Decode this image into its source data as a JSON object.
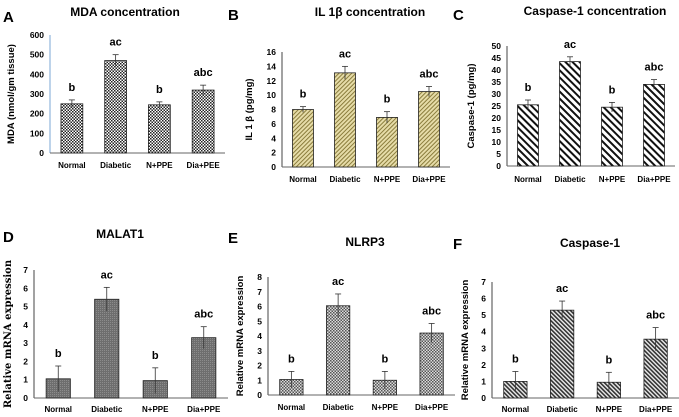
{
  "chart_data": [
    {
      "panel": "A",
      "type": "bar",
      "title": "MDA concentration",
      "ylabel": "MDA (nmol/gm tissue)",
      "categories": [
        "Normal",
        "Diabetic",
        "N+PPE",
        "Dia+PEE"
      ],
      "values": [
        250,
        470,
        245,
        320
      ],
      "errors": [
        20,
        30,
        15,
        25
      ],
      "significance": [
        "b",
        "ac",
        "b",
        "abc"
      ],
      "ylim": [
        0,
        600
      ],
      "yticks": [
        0,
        100,
        200,
        300,
        400,
        500,
        600
      ],
      "fill": "#555555",
      "pattern": "checker"
    },
    {
      "panel": "B",
      "type": "bar",
      "title": "IL 1β concentration",
      "ylabel": "IL 1 β (pg/mg)",
      "categories": [
        "Normal",
        "Diabetic",
        "N+PPE",
        "Dia+PPE"
      ],
      "values": [
        8,
        13.1,
        6.9,
        10.5
      ],
      "errors": [
        0.4,
        0.9,
        0.8,
        0.7
      ],
      "significance": [
        "b",
        "ac",
        "b",
        "abc"
      ],
      "ylim": [
        0,
        16
      ],
      "yticks": [
        0,
        2,
        4,
        6,
        8,
        10,
        12,
        14,
        16
      ],
      "fill": "#d9cf98",
      "pattern": "hatch-fine"
    },
    {
      "panel": "C",
      "type": "bar",
      "title": "Caspase-1 concentration",
      "ylabel": "Caspase-1 (pg/mg)",
      "categories": [
        "Normal",
        "Diabetic",
        "N+PPE",
        "Dia+PPE"
      ],
      "values": [
        25.5,
        43.5,
        24.5,
        34
      ],
      "errors": [
        2,
        2,
        2,
        2
      ],
      "significance": [
        "b",
        "ac",
        "b",
        "abc"
      ],
      "ylim": [
        0,
        50
      ],
      "yticks": [
        0,
        5,
        10,
        15,
        20,
        25,
        30,
        35,
        40,
        45,
        50
      ],
      "fill": "#ffffff",
      "pattern": "hatch-wide"
    },
    {
      "panel": "D",
      "type": "bar",
      "title": "MALAT1",
      "ylabel": "Relative mRNA expression",
      "categories": [
        "Normal",
        "Diabetic",
        "N+PPE",
        "Dia+PPE"
      ],
      "values": [
        1.05,
        5.4,
        0.95,
        3.3
      ],
      "errors": [
        0.7,
        0.65,
        0.7,
        0.6
      ],
      "significance": [
        "b",
        "ac",
        "b",
        "abc"
      ],
      "ylim": [
        0,
        7
      ],
      "yticks": [
        0,
        1,
        2,
        3,
        4,
        5,
        6,
        7
      ],
      "fill": "#7a7a7a",
      "pattern": "dots"
    },
    {
      "panel": "E",
      "type": "bar",
      "title": "NLRP3",
      "ylabel": "Relative mRNA expression",
      "categories": [
        "Normal",
        "Diabetic",
        "N+PPE",
        "Dia+PPE"
      ],
      "values": [
        1.05,
        6.05,
        1.0,
        4.2
      ],
      "errors": [
        0.55,
        0.8,
        0.6,
        0.65
      ],
      "significance": [
        "b",
        "ac",
        "b",
        "abc"
      ],
      "ylim": [
        0,
        8
      ],
      "yticks": [
        0,
        1,
        2,
        3,
        4,
        5,
        6,
        7,
        8
      ],
      "fill": "#9a9a9a",
      "pattern": "checker"
    },
    {
      "panel": "F",
      "type": "bar",
      "title": "Caspase-1",
      "ylabel": "Relative mRNA expression",
      "categories": [
        "Normal",
        "Diabetic",
        "N+PPE",
        "Dia+PPE"
      ],
      "values": [
        1.0,
        5.3,
        0.95,
        3.55
      ],
      "errors": [
        0.6,
        0.55,
        0.6,
        0.7
      ],
      "significance": [
        "b",
        "ac",
        "b",
        "abc"
      ],
      "ylim": [
        0,
        7
      ],
      "yticks": [
        0,
        1,
        2,
        3,
        4,
        5,
        6,
        7
      ],
      "fill": "#888888",
      "pattern": "hatch-fine"
    }
  ]
}
